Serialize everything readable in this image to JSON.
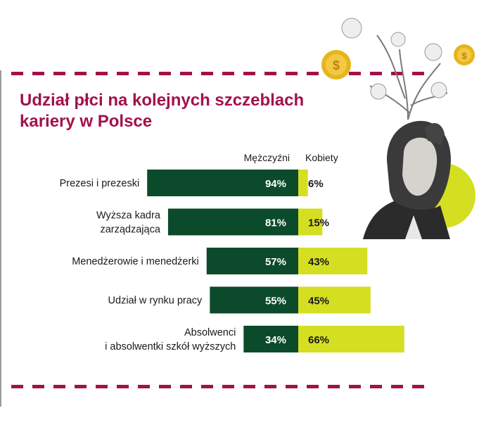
{
  "title": "Udział płci na kolejnych szczeblach kariery w Polsce",
  "colors": {
    "accent": "#a3114a",
    "men": "#0b4a2a",
    "women": "#d4df22"
  },
  "chart_data": {
    "type": "bar",
    "orientation": "horizontal-diverging",
    "title": "Udział płci na kolejnych szczeblach kariery w Polsce",
    "categories": [
      [
        "Prezesi i prezeski"
      ],
      [
        "Wyższa kadra",
        "zarządzająca"
      ],
      [
        "Menedżerowie i menedżerki"
      ],
      [
        "Udział w rynku pracy"
      ],
      [
        "Absolwenci",
        "i absolwentki szkół wyższych"
      ]
    ],
    "series": [
      {
        "name": "Mężczyźni",
        "values": [
          94,
          81,
          57,
          55,
          34
        ],
        "labels": [
          "94%",
          "81%",
          "57%",
          "55%",
          "34%"
        ],
        "color": "#0b4a2a"
      },
      {
        "name": "Kobiety",
        "values": [
          6,
          15,
          43,
          45,
          66
        ],
        "labels": [
          "6%",
          "15%",
          "43%",
          "45%",
          "66%"
        ],
        "color": "#d4df22"
      }
    ],
    "unit": "%",
    "legend": "column headers above bars"
  }
}
